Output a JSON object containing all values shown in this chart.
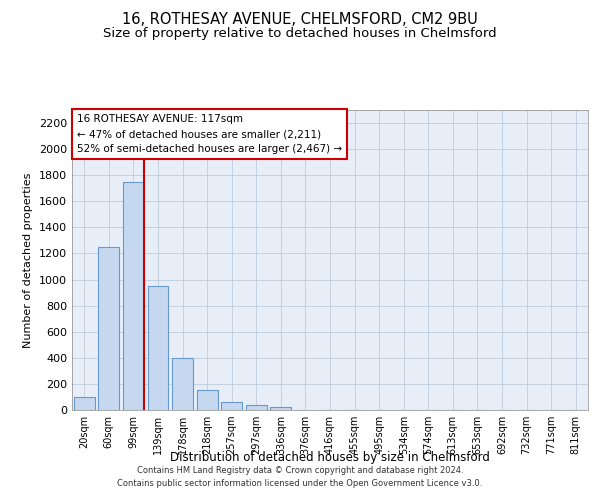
{
  "title": "16, ROTHESAY AVENUE, CHELMSFORD, CM2 9BU",
  "subtitle": "Size of property relative to detached houses in Chelmsford",
  "xlabel": "Distribution of detached houses by size in Chelmsford",
  "ylabel": "Number of detached properties",
  "bar_labels": [
    "20sqm",
    "60sqm",
    "99sqm",
    "139sqm",
    "178sqm",
    "218sqm",
    "257sqm",
    "297sqm",
    "336sqm",
    "376sqm",
    "416sqm",
    "455sqm",
    "495sqm",
    "534sqm",
    "574sqm",
    "613sqm",
    "653sqm",
    "692sqm",
    "732sqm",
    "771sqm",
    "811sqm"
  ],
  "bar_values": [
    100,
    1250,
    1750,
    950,
    400,
    150,
    65,
    35,
    25,
    0,
    0,
    0,
    0,
    0,
    0,
    0,
    0,
    0,
    0,
    0,
    0
  ],
  "bar_color": "#c5d8f0",
  "bar_edge_color": "#6699cc",
  "annotation_line1": "16 ROTHESAY AVENUE: 117sqm",
  "annotation_line2": "← 47% of detached houses are smaller (2,211)",
  "annotation_line3": "52% of semi-detached houses are larger (2,467) →",
  "ylim": [
    0,
    2300
  ],
  "yticks": [
    0,
    200,
    400,
    600,
    800,
    1000,
    1200,
    1400,
    1600,
    1800,
    2000,
    2200
  ],
  "footer_line1": "Contains HM Land Registry data © Crown copyright and database right 2024.",
  "footer_line2": "Contains public sector information licensed under the Open Government Licence v3.0.",
  "background_color": "#ffffff",
  "plot_bg_color": "#e8eef8",
  "grid_color": "#c0ccdc",
  "title_fontsize": 10.5,
  "subtitle_fontsize": 9.5,
  "annotation_box_color": "#ffffff",
  "annotation_box_edge": "#cc0000",
  "red_line_index": 2.43
}
